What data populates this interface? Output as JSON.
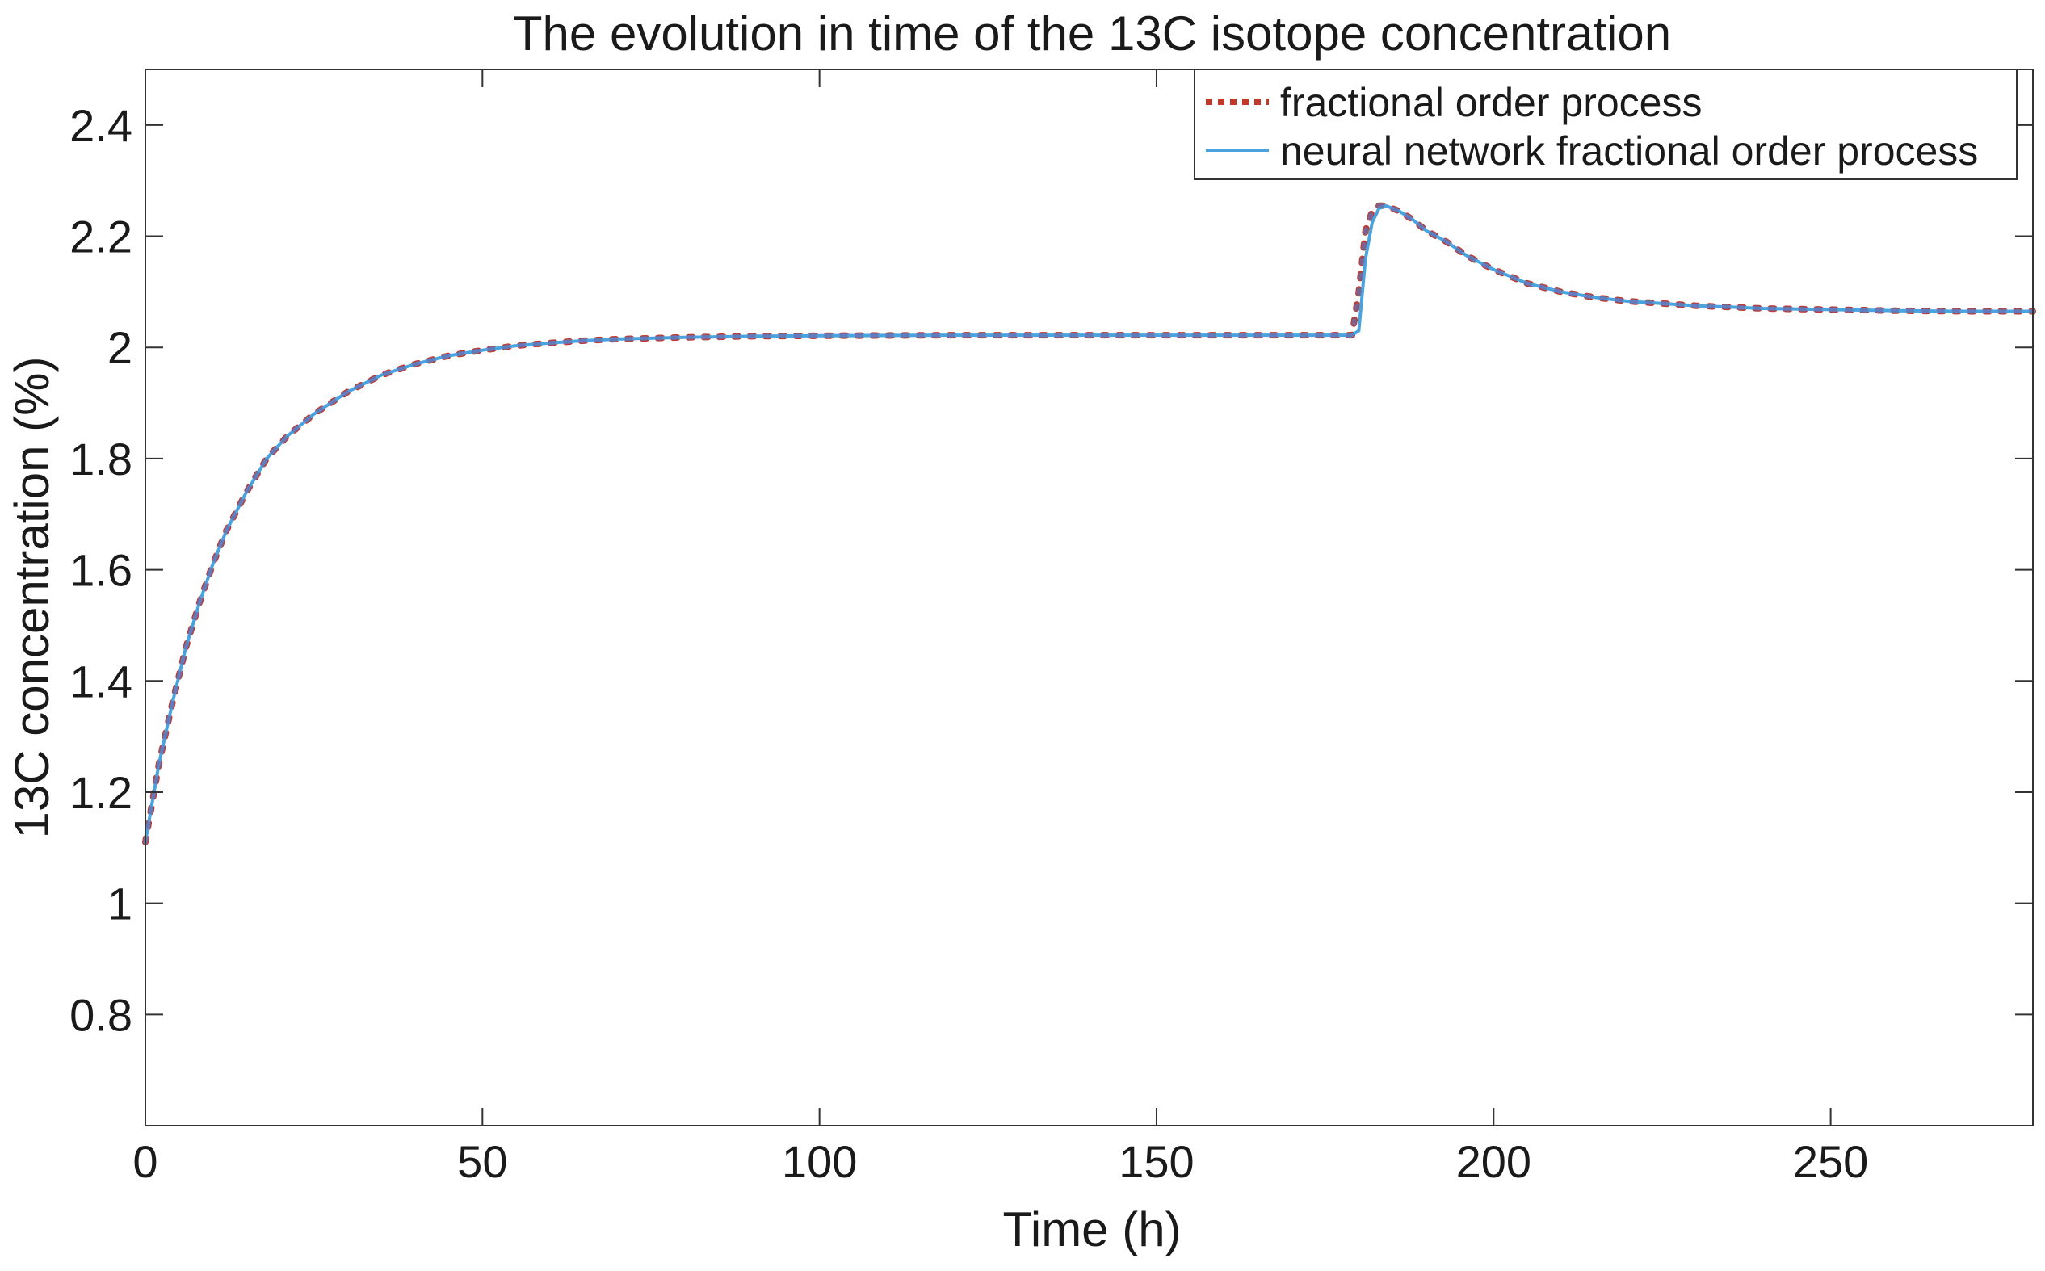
{
  "chart_data": {
    "type": "line",
    "title": "The evolution in time of the 13C isotope concentration",
    "xlabel": "Time (h)",
    "ylabel": "13C concentration  (%)",
    "xlim": [
      0,
      280
    ],
    "ylim": [
      0.6,
      2.5
    ],
    "xticks": [
      0,
      50,
      100,
      150,
      200,
      250
    ],
    "xtick_labels": [
      "0",
      "50",
      "100",
      "150",
      "200",
      "250"
    ],
    "yticks": [
      0.8,
      1,
      1.2,
      1.4,
      1.6,
      1.8,
      2,
      2.2,
      2.4
    ],
    "ytick_labels": [
      "0.8",
      "1",
      "1.2",
      "1.4",
      "1.6",
      "1.8",
      "2",
      "2.2",
      "2.4"
    ],
    "grid": false,
    "legend_position": "top-right",
    "step_time": 180,
    "series": [
      {
        "name": "fractional order process",
        "color": "#c0392b",
        "style": "dotted",
        "x": [
          0,
          2,
          4,
          6,
          8,
          10,
          12,
          15,
          18,
          21,
          25,
          30,
          35,
          40,
          45,
          50,
          55,
          60,
          65,
          70,
          80,
          90,
          100,
          120,
          140,
          160,
          179,
          180,
          181,
          182,
          183,
          184,
          186,
          188,
          190,
          193,
          196,
          200,
          205,
          210,
          215,
          220,
          230,
          240,
          250,
          260,
          270,
          280
        ],
        "y": [
          1.11,
          1.25,
          1.36,
          1.46,
          1.54,
          1.61,
          1.67,
          1.74,
          1.8,
          1.84,
          1.88,
          1.92,
          1.95,
          1.97,
          1.985,
          1.995,
          2.003,
          2.008,
          2.012,
          2.015,
          2.018,
          2.02,
          2.021,
          2.022,
          2.022,
          2.022,
          2.022,
          2.1,
          2.21,
          2.245,
          2.255,
          2.255,
          2.245,
          2.23,
          2.21,
          2.19,
          2.165,
          2.14,
          2.115,
          2.1,
          2.09,
          2.083,
          2.075,
          2.07,
          2.068,
          2.066,
          2.065,
          2.065
        ]
      },
      {
        "name": "neural network fractional order process",
        "color": "#4aa3df",
        "style": "solid",
        "x": [
          0,
          2,
          4,
          6,
          8,
          10,
          12,
          15,
          18,
          21,
          25,
          30,
          35,
          40,
          45,
          50,
          55,
          60,
          65,
          70,
          80,
          90,
          100,
          120,
          140,
          160,
          179,
          180,
          181,
          182,
          183,
          184,
          186,
          188,
          190,
          193,
          196,
          200,
          205,
          210,
          215,
          220,
          230,
          240,
          250,
          260,
          270,
          280
        ],
        "y": [
          1.11,
          1.25,
          1.36,
          1.46,
          1.54,
          1.61,
          1.67,
          1.74,
          1.8,
          1.84,
          1.88,
          1.92,
          1.95,
          1.97,
          1.985,
          1.995,
          2.003,
          2.008,
          2.012,
          2.015,
          2.018,
          2.02,
          2.021,
          2.022,
          2.022,
          2.022,
          2.022,
          2.03,
          2.16,
          2.225,
          2.25,
          2.255,
          2.245,
          2.23,
          2.21,
          2.19,
          2.165,
          2.14,
          2.115,
          2.1,
          2.09,
          2.083,
          2.075,
          2.07,
          2.068,
          2.066,
          2.065,
          2.065
        ]
      }
    ]
  }
}
